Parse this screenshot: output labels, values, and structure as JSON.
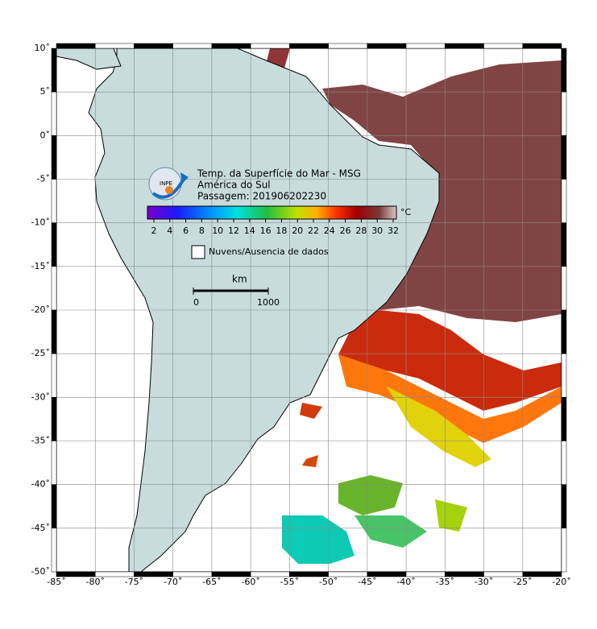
{
  "map": {
    "title": "Temp. da Superfície do Mar - MSG",
    "subtitle": "América do Sul",
    "pass": "Passagem: 201906202230",
    "logo": "INPE",
    "xlim": [
      -85,
      -20
    ],
    "ylim": [
      -50,
      10
    ],
    "xticks": [
      {
        "value": -85,
        "label": "-85˚"
      },
      {
        "value": -80,
        "label": "-80˚"
      },
      {
        "value": -75,
        "label": "-75˚"
      },
      {
        "value": -70,
        "label": "-70˚"
      },
      {
        "value": -65,
        "label": "-65˚"
      },
      {
        "value": -60,
        "label": "-60˚"
      },
      {
        "value": -55,
        "label": "-55˚"
      },
      {
        "value": -50,
        "label": "-50˚"
      },
      {
        "value": -45,
        "label": "-45˚"
      },
      {
        "value": -40,
        "label": "-40˚"
      },
      {
        "value": -35,
        "label": "-35˚"
      },
      {
        "value": -30,
        "label": "-30˚"
      },
      {
        "value": -25,
        "label": "-25˚"
      },
      {
        "value": -20,
        "label": "-20˚"
      }
    ],
    "yticks": [
      {
        "value": 10,
        "label": "10˚"
      },
      {
        "value": 5,
        "label": "5˚"
      },
      {
        "value": 0,
        "label": "0˚"
      },
      {
        "value": -5,
        "label": "-5˚"
      },
      {
        "value": -10,
        "label": "-10˚"
      },
      {
        "value": -15,
        "label": "-15˚"
      },
      {
        "value": -20,
        "label": "-20˚"
      },
      {
        "value": -25,
        "label": "-25˚"
      },
      {
        "value": -30,
        "label": "-30˚"
      },
      {
        "value": -35,
        "label": "-35˚"
      },
      {
        "value": -40,
        "label": "-40˚"
      },
      {
        "value": -45,
        "label": "-45˚"
      },
      {
        "value": -50,
        "label": "-50˚"
      }
    ],
    "colorbar": {
      "unit": "°C",
      "ticks": [
        2,
        4,
        6,
        8,
        10,
        12,
        14,
        16,
        18,
        20,
        22,
        24,
        26,
        28,
        30,
        32
      ]
    },
    "legend": "Nuvens/Ausencia de dados",
    "scalebar": {
      "unit": "km",
      "ticks": [
        0,
        1000
      ]
    }
  }
}
